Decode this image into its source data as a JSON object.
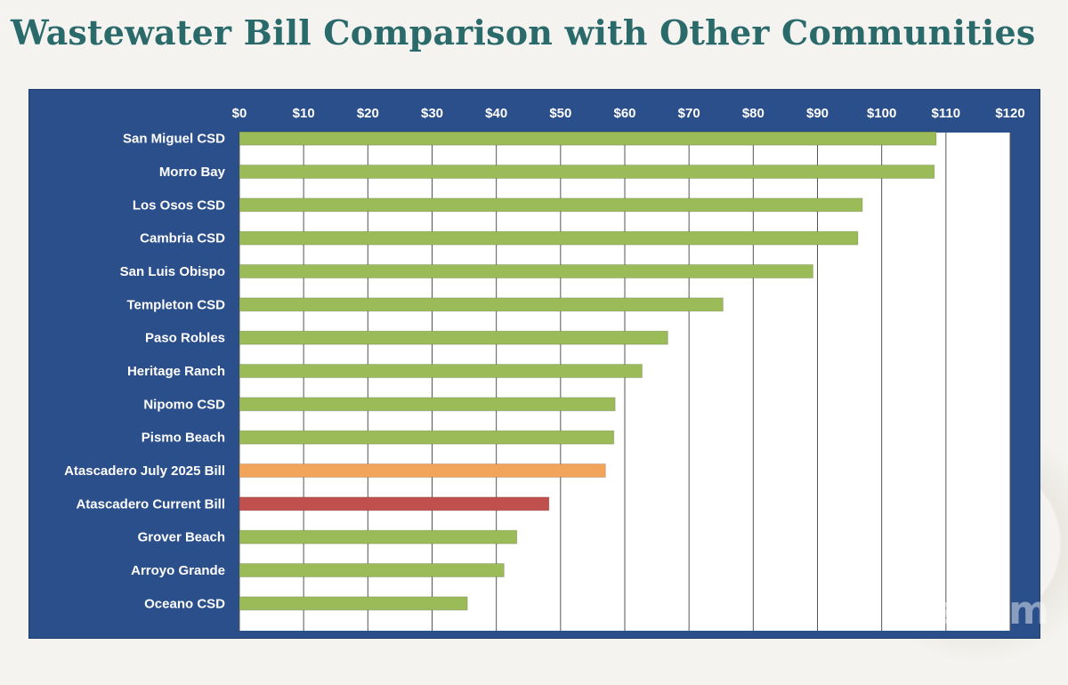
{
  "slide": {
    "title": "Wastewater Bill Comparison with Other Communities",
    "watermark": "zoom"
  },
  "colors": {
    "title": "#2b6a6a",
    "panel": "#2b4f8a",
    "plot_bg": "#ffffff",
    "grid": "#555555",
    "bar_default": "#9bbb59",
    "bar_july_2025": "#f2a55a",
    "bar_current": "#c0504d",
    "label_text": "#ffffff"
  },
  "chart_data": {
    "type": "bar",
    "orientation": "horizontal",
    "categories": [
      "San Miguel CSD",
      "Morro Bay",
      "Los Osos CSD",
      "Cambria CSD",
      "San Luis Obispo",
      "Templeton CSD",
      "Paso Robles",
      "Heritage Ranch",
      "Nipomo CSD",
      "Pismo Beach",
      "Atascadero July 2025 Bill",
      "Atascadero Current Bill",
      "Grover Beach",
      "Arroyo Grande",
      "Oceano CSD"
    ],
    "values": [
      108.5,
      108.2,
      97,
      96.3,
      89.3,
      75.3,
      66.7,
      62.7,
      58.5,
      58.3,
      57,
      48.2,
      43.2,
      41.2,
      35.5
    ],
    "bar_colors": [
      "#9bbb59",
      "#9bbb59",
      "#9bbb59",
      "#9bbb59",
      "#9bbb59",
      "#9bbb59",
      "#9bbb59",
      "#9bbb59",
      "#9bbb59",
      "#9bbb59",
      "#f2a55a",
      "#c0504d",
      "#9bbb59",
      "#9bbb59",
      "#9bbb59"
    ],
    "xlim": [
      0,
      120
    ],
    "ticks": [
      0,
      10,
      20,
      30,
      40,
      50,
      60,
      70,
      80,
      90,
      100,
      110,
      120
    ],
    "tick_labels": [
      "$0",
      "$10",
      "$20",
      "$30",
      "$40",
      "$50",
      "$60",
      "$70",
      "$80",
      "$90",
      "$100",
      "$110",
      "$120"
    ],
    "axis_position": "top",
    "grid": true,
    "legend": "none",
    "title": "",
    "xlabel": "",
    "ylabel": ""
  }
}
